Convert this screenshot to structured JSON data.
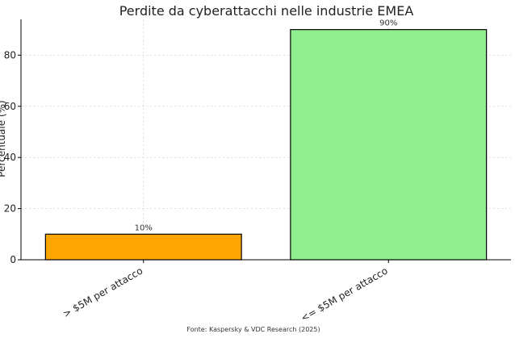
{
  "chart_data": {
    "type": "bar",
    "title": "Perdite da cyberattacchi nelle industrie EMEA",
    "ylabel": "Percentuale (%)",
    "xlabel": "",
    "categories": [
      "> $5M per attacco",
      "<= $5M per attacco"
    ],
    "values": [
      10,
      90
    ],
    "data_labels": [
      "10%",
      "90%"
    ],
    "colors": [
      "#FFA500",
      "#90EE90"
    ],
    "ylim": [
      0,
      94
    ],
    "yticks": [
      0,
      20,
      40,
      60,
      80
    ],
    "grid": true,
    "source": "Fonte: Kaspersky & VDC Research (2025)"
  }
}
